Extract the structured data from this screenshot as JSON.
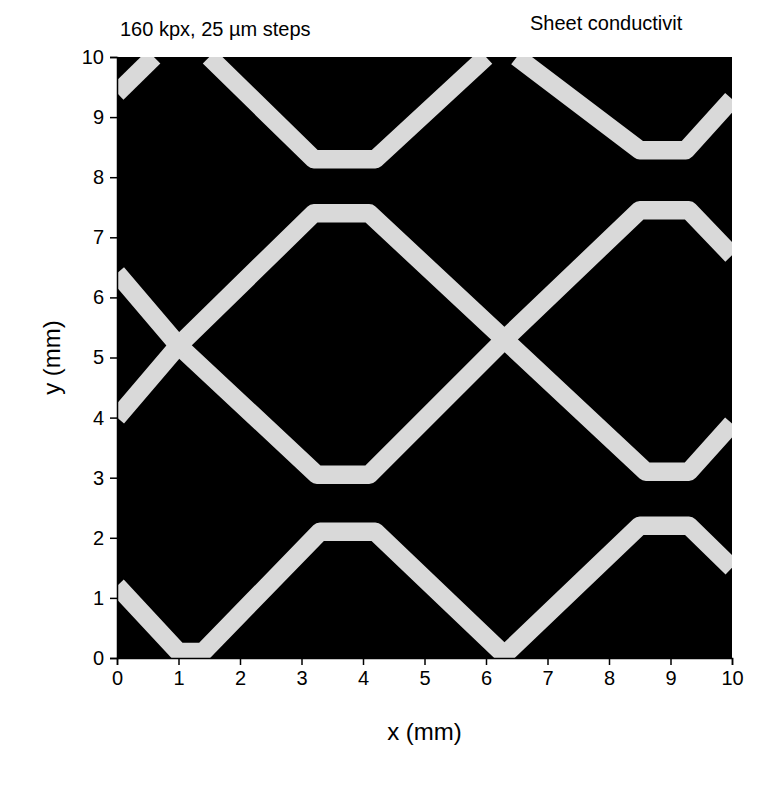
{
  "chart_data": {
    "type": "line",
    "title": "160 kpx, 25 µm steps",
    "subtitle": "Sheet conductivit",
    "x_label": "x (mm)",
    "y_label": "y (mm)",
    "xlim": [
      0,
      10
    ],
    "ylim": [
      0,
      10
    ],
    "xticks": [
      0,
      1,
      2,
      3,
      4,
      5,
      6,
      7,
      8,
      9,
      10
    ],
    "yticks": [
      0,
      1,
      2,
      3,
      4,
      5,
      6,
      7,
      8,
      9,
      10
    ],
    "color": "#d9d9d9",
    "series": [
      {
        "x": [
          0,
          0.6
        ],
        "values": [
          9.4,
          10
        ]
      },
      {
        "x": [
          1.5,
          3.2,
          4.2,
          6.0
        ],
        "values": [
          10,
          8.3,
          8.3,
          10
        ]
      },
      {
        "x": [
          6.5,
          8.5,
          9.25,
          10
        ],
        "values": [
          10,
          8.45,
          8.45,
          9.3
        ]
      },
      {
        "x": [
          0,
          1.0,
          3.25,
          4.1,
          6.3,
          8.5,
          9.3,
          10
        ],
        "values": [
          6.4,
          5.2,
          3.05,
          3.05,
          5.3,
          7.45,
          7.45,
          6.7
        ]
      },
      {
        "x": [
          0,
          1.0,
          3.2,
          4.1,
          6.3,
          8.6,
          9.3,
          10
        ],
        "values": [
          4.0,
          5.2,
          7.4,
          7.4,
          5.3,
          3.1,
          3.1,
          3.9
        ]
      },
      {
        "x": [
          0,
          1.0,
          1.4,
          3.3,
          4.2,
          6.3,
          8.5,
          9.3,
          10
        ],
        "values": [
          1.2,
          0.1,
          0.1,
          2.1,
          2.1,
          0.05,
          2.2,
          2.2,
          1.5
        ]
      }
    ]
  }
}
